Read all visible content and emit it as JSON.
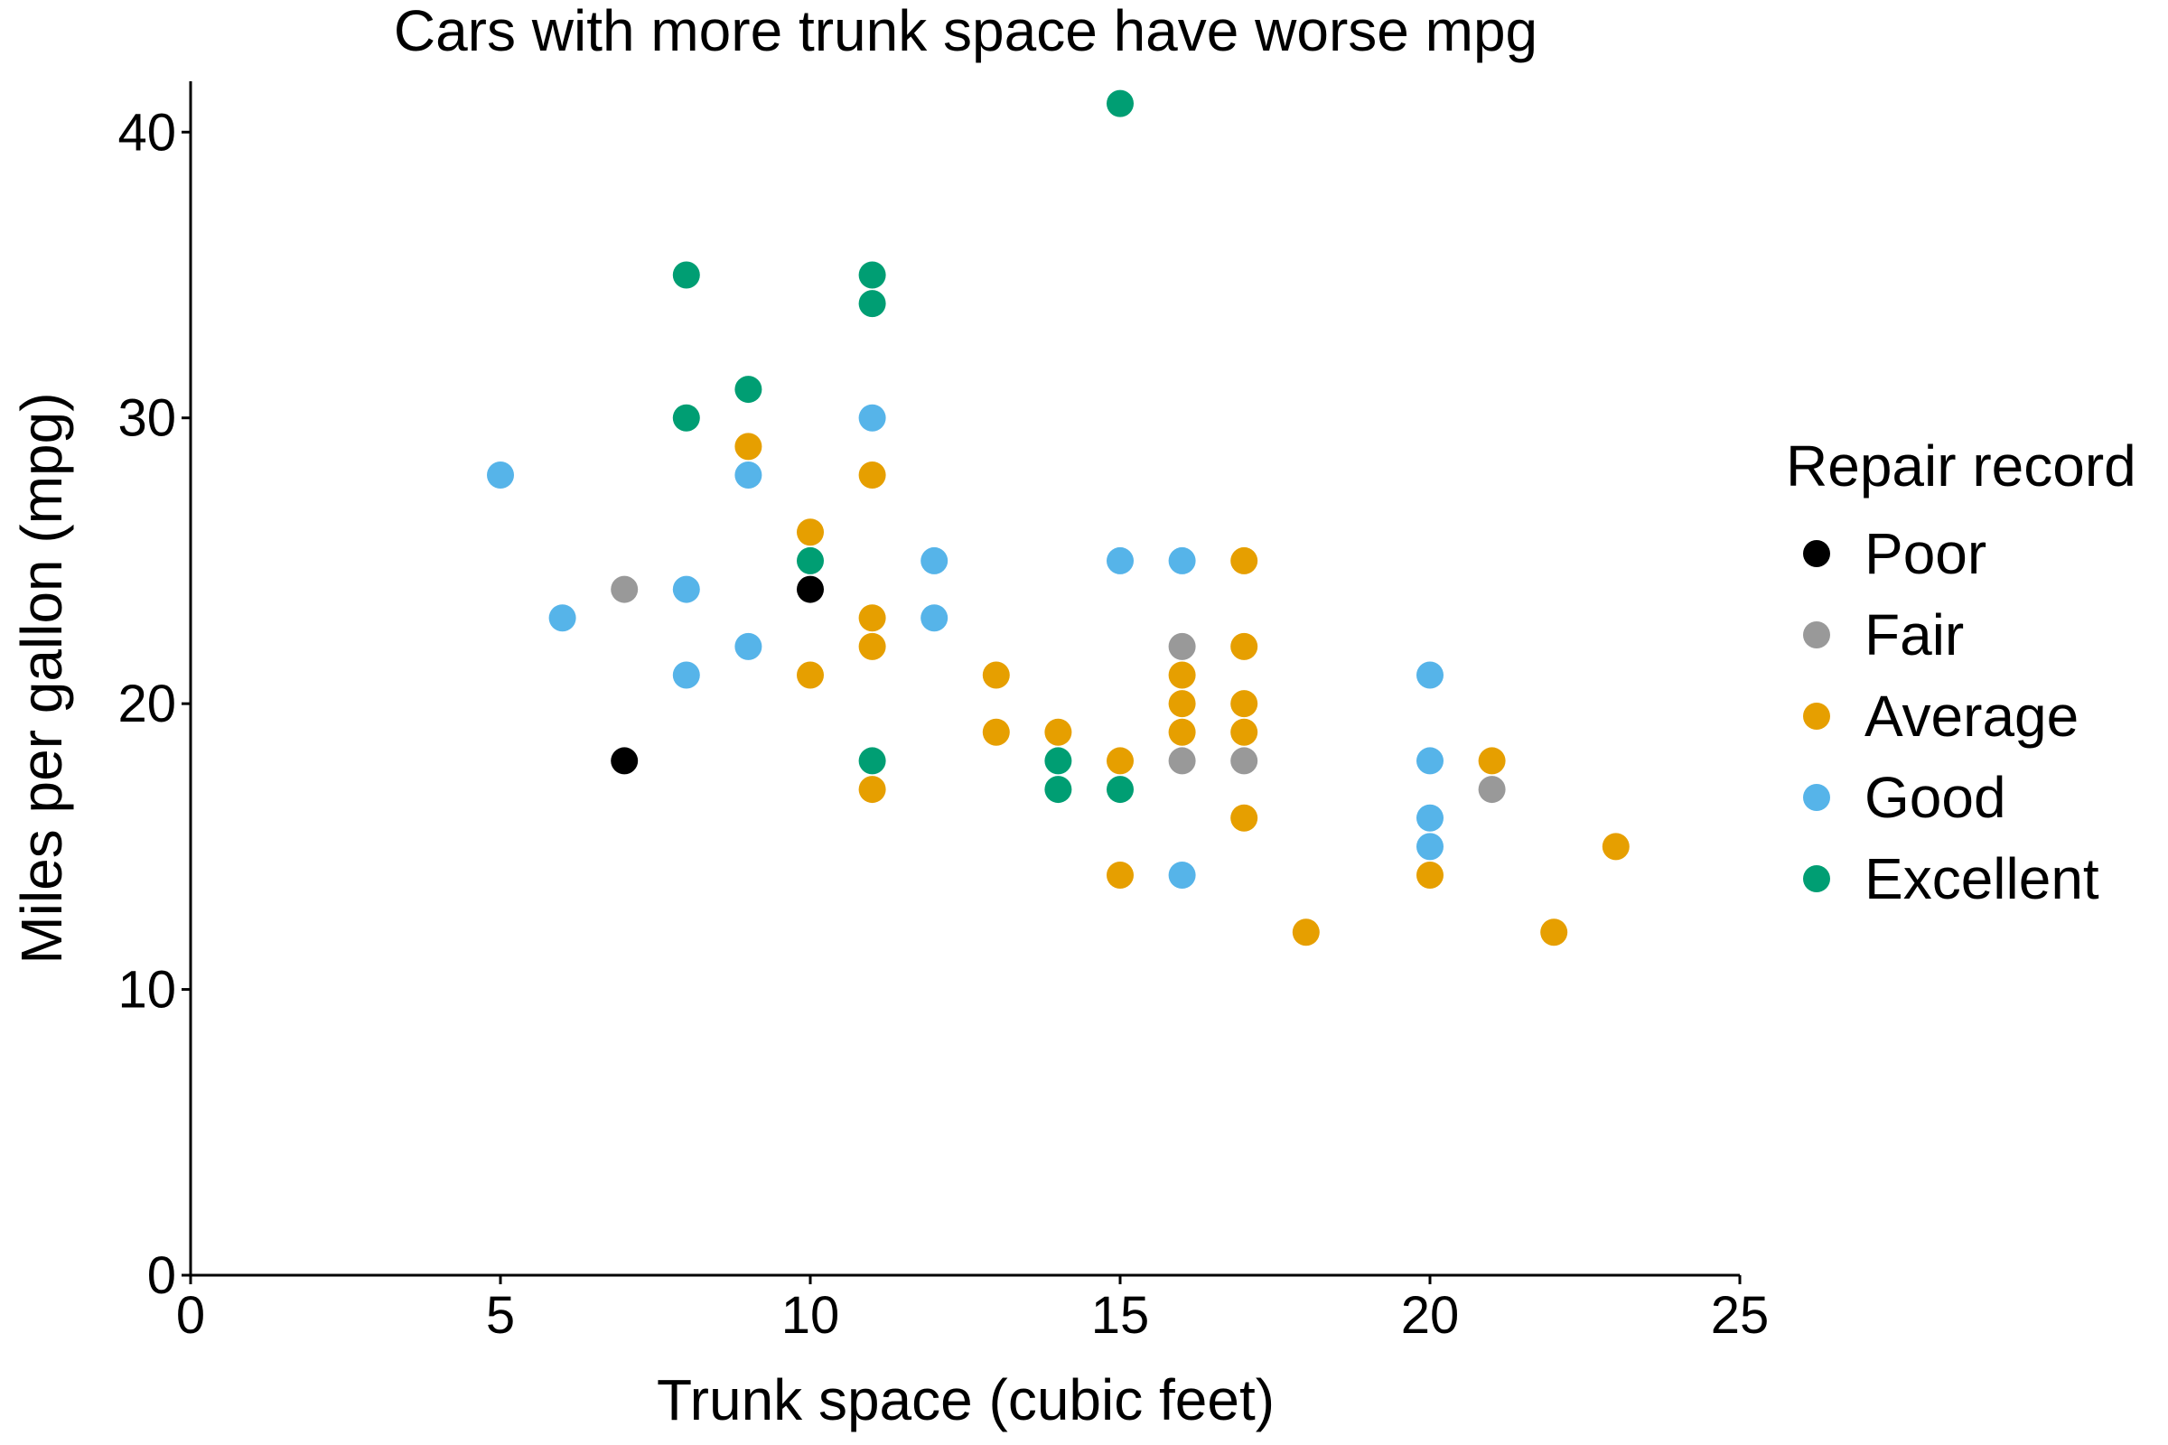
{
  "chart_data": {
    "type": "scatter",
    "title": "Cars with more trunk space have worse mpg",
    "xlabel": "Trunk space (cubic feet)",
    "ylabel": "Miles per gallon (mpg)",
    "xlim": [
      0,
      25
    ],
    "ylim": [
      0,
      42
    ],
    "xticks": [
      0,
      5,
      10,
      15,
      20,
      25
    ],
    "yticks": [
      0,
      10,
      20,
      30,
      40
    ],
    "grid": false,
    "legend": {
      "title": "Repair record",
      "position": "right"
    },
    "series": [
      {
        "name": "Poor",
        "color": "#000000",
        "points": [
          [
            7,
            18
          ],
          [
            10,
            24
          ]
        ]
      },
      {
        "name": "Fair",
        "color": "#999999",
        "points": [
          [
            7,
            24
          ],
          [
            16,
            22
          ],
          [
            16,
            18
          ],
          [
            17,
            18
          ],
          [
            21,
            17
          ]
        ]
      },
      {
        "name": "Average",
        "color": "#E69F00",
        "points": [
          [
            9,
            29
          ],
          [
            10,
            26
          ],
          [
            10,
            21
          ],
          [
            11,
            28
          ],
          [
            11,
            23
          ],
          [
            11,
            22
          ],
          [
            11,
            17
          ],
          [
            13,
            21
          ],
          [
            13,
            19
          ],
          [
            14,
            19
          ],
          [
            15,
            18
          ],
          [
            15,
            14
          ],
          [
            16,
            21
          ],
          [
            16,
            20
          ],
          [
            16,
            19
          ],
          [
            17,
            25
          ],
          [
            17,
            22
          ],
          [
            17,
            20
          ],
          [
            17,
            19
          ],
          [
            17,
            16
          ],
          [
            18,
            12
          ],
          [
            20,
            14
          ],
          [
            21,
            18
          ],
          [
            22,
            12
          ],
          [
            23,
            15
          ]
        ]
      },
      {
        "name": "Good",
        "color": "#56B4E9",
        "points": [
          [
            5,
            28
          ],
          [
            6,
            23
          ],
          [
            8,
            24
          ],
          [
            8,
            21
          ],
          [
            9,
            28
          ],
          [
            9,
            22
          ],
          [
            11,
            30
          ],
          [
            12,
            25
          ],
          [
            12,
            23
          ],
          [
            15,
            25
          ],
          [
            16,
            25
          ],
          [
            16,
            14
          ],
          [
            20,
            21
          ],
          [
            20,
            18
          ],
          [
            20,
            16
          ],
          [
            20,
            15
          ]
        ]
      },
      {
        "name": "Excellent",
        "color": "#009E73",
        "points": [
          [
            8,
            35
          ],
          [
            8,
            30
          ],
          [
            9,
            31
          ],
          [
            10,
            25
          ],
          [
            11,
            35
          ],
          [
            11,
            34
          ],
          [
            11,
            18
          ],
          [
            14,
            18
          ],
          [
            14,
            17
          ],
          [
            15,
            41
          ],
          [
            15,
            17
          ]
        ]
      }
    ]
  }
}
